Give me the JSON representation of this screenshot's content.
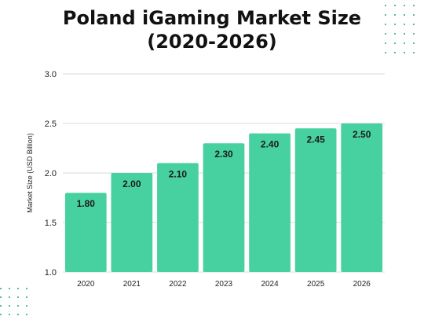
{
  "title": {
    "line1": "Poland iGaming Market Size",
    "line2": "(2020-2026)"
  },
  "colors": {
    "bar": "#47d1a1",
    "grid": "#d9d9d9",
    "text": "#222222",
    "dots": "#2f9d86"
  },
  "chart_data": {
    "type": "bar",
    "title": "Poland iGaming Market Size (2020-2026)",
    "xlabel": "",
    "ylabel": "Market Size (USD Billion)",
    "categories": [
      "2020",
      "2021",
      "2022",
      "2023",
      "2024",
      "2025",
      "2026"
    ],
    "values": [
      1.8,
      2.0,
      2.1,
      2.3,
      2.4,
      2.45,
      2.5
    ],
    "data_labels": [
      "1.80",
      "2.00",
      "2.10",
      "2.30",
      "2.40",
      "2.45",
      "2.50"
    ],
    "yticks": [
      "1.0",
      "1.5",
      "2.0",
      "2.5",
      "3.0"
    ],
    "ylim": [
      1.0,
      3.0
    ],
    "grid": true,
    "legend": "none"
  }
}
